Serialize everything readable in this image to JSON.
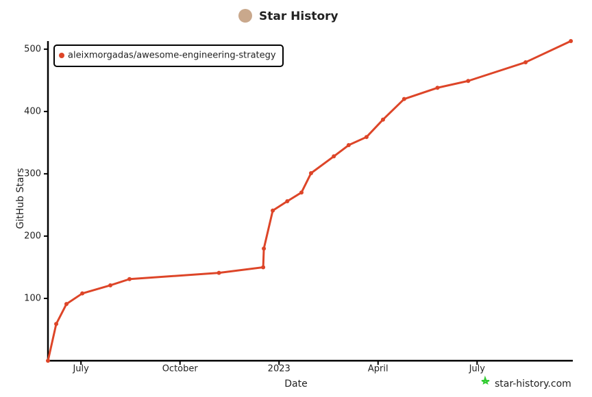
{
  "chart_data": {
    "type": "line",
    "title": "Star History",
    "x_label": "Date",
    "y_label": "GitHub Stars",
    "x": [
      5.0,
      5.25,
      5.56,
      6.04,
      6.89,
      7.47,
      10.18,
      11.52,
      11.54,
      11.81,
      12.25,
      12.68,
      12.97,
      13.66,
      14.11,
      14.65,
      15.15,
      15.79,
      16.8,
      17.73,
      19.47,
      20.84
    ],
    "series": [
      {
        "name": "aleixmorgadas/awesome-engineering-strategy",
        "color": "#dd4528",
        "values": [
          0,
          59,
          91,
          108,
          121,
          131,
          141,
          150,
          180,
          241,
          256,
          270,
          301,
          328,
          346,
          359,
          387,
          420,
          438,
          449,
          479,
          513
        ]
      }
    ],
    "xlim": [
      5.0,
      20.9
    ],
    "xticks": [
      {
        "value": 6,
        "label": "July"
      },
      {
        "value": 9,
        "label": "October"
      },
      {
        "value": 12,
        "label": "2023"
      },
      {
        "value": 15,
        "label": "April"
      },
      {
        "value": 18,
        "label": "July"
      }
    ],
    "ylim": [
      0,
      513
    ],
    "yticks": [
      100,
      200,
      300,
      400,
      500
    ],
    "legend": "top-left",
    "watermark": "star-history.com"
  }
}
